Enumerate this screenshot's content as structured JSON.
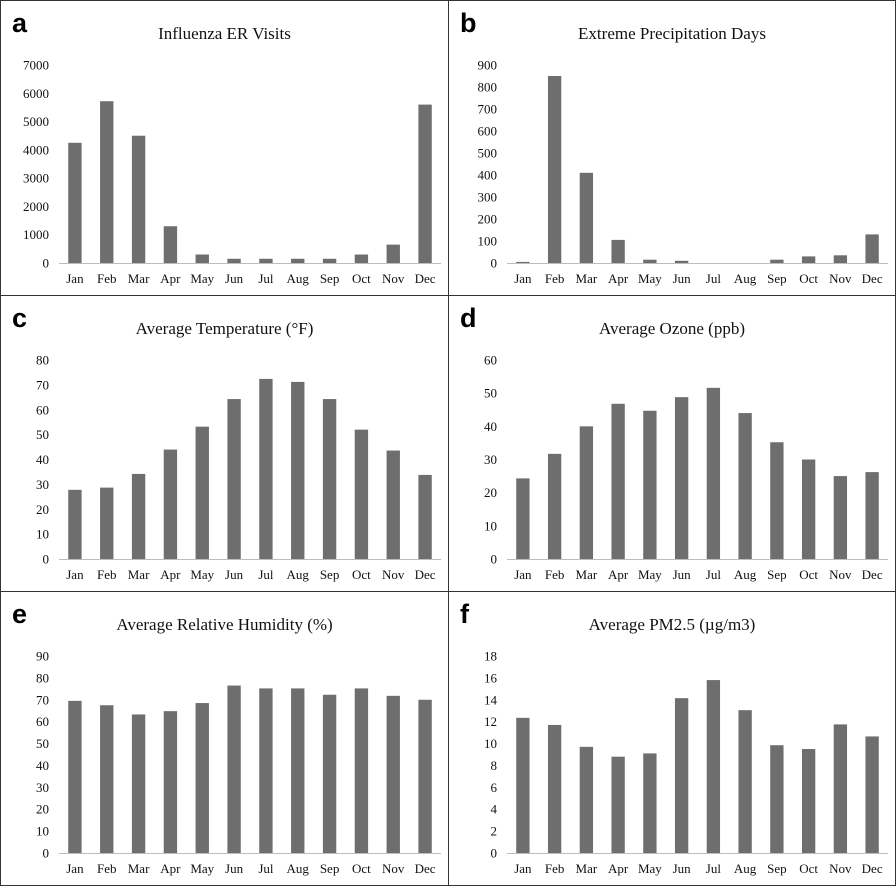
{
  "figure": {
    "bar_color": "#6e6e6e"
  },
  "chart_data": [
    {
      "panel": "a",
      "type": "bar",
      "title": "Influenza ER Visits",
      "categories": [
        "Jan",
        "Feb",
        "Mar",
        "Apr",
        "May",
        "Jun",
        "Jul",
        "Aug",
        "Sep",
        "Oct",
        "Nov",
        "Dec"
      ],
      "values": [
        4250,
        5720,
        4500,
        1300,
        300,
        150,
        150,
        150,
        150,
        300,
        650,
        5600
      ],
      "ylim": [
        0,
        7000
      ],
      "yticks": [
        0,
        1000,
        2000,
        3000,
        4000,
        5000,
        6000,
        7000
      ],
      "grid": false
    },
    {
      "panel": "b",
      "type": "bar",
      "title": "Extreme Precipitation Days",
      "categories": [
        "Jan",
        "Feb",
        "Mar",
        "Apr",
        "May",
        "Jun",
        "Jul",
        "Aug",
        "Sep",
        "Oct",
        "Nov",
        "Dec"
      ],
      "values": [
        5,
        850,
        410,
        105,
        15,
        10,
        0,
        0,
        15,
        30,
        35,
        130
      ],
      "ylim": [
        0,
        900
      ],
      "yticks": [
        0,
        100,
        200,
        300,
        400,
        500,
        600,
        700,
        800,
        900
      ],
      "grid": false
    },
    {
      "panel": "c",
      "type": "bar",
      "title": "Average Temperature (°F)",
      "categories": [
        "Jan",
        "Feb",
        "Mar",
        "Apr",
        "May",
        "Jun",
        "Jul",
        "Aug",
        "Sep",
        "Oct",
        "Nov",
        "Dec"
      ],
      "values": [
        27.8,
        28.7,
        34.2,
        44,
        53.2,
        64.3,
        72.4,
        71.2,
        64.3,
        52,
        43.6,
        33.8
      ],
      "ylim": [
        0,
        80
      ],
      "yticks": [
        0,
        10,
        20,
        30,
        40,
        50,
        60,
        70,
        80
      ],
      "grid": false
    },
    {
      "panel": "d",
      "type": "bar",
      "title": "Average Ozone (ppb)",
      "categories": [
        "Jan",
        "Feb",
        "Mar",
        "Apr",
        "May",
        "Jun",
        "Jul",
        "Aug",
        "Sep",
        "Oct",
        "Nov",
        "Dec"
      ],
      "values": [
        24.3,
        31.7,
        40,
        46.8,
        44.7,
        48.8,
        51.6,
        44,
        35.2,
        30,
        25,
        26.2
      ],
      "ylim": [
        0,
        60
      ],
      "yticks": [
        0,
        10,
        20,
        30,
        40,
        50,
        60
      ],
      "grid": false
    },
    {
      "panel": "e",
      "type": "bar",
      "title": "Average Relative Humidity (%)",
      "categories": [
        "Jan",
        "Feb",
        "Mar",
        "Apr",
        "May",
        "Jun",
        "Jul",
        "Aug",
        "Sep",
        "Oct",
        "Nov",
        "Dec"
      ],
      "values": [
        69.5,
        67.5,
        63.3,
        64.8,
        68.5,
        76.5,
        75.2,
        75.2,
        72.3,
        75.2,
        71.8,
        70
      ],
      "ylim": [
        0,
        90
      ],
      "yticks": [
        0,
        10,
        20,
        30,
        40,
        50,
        60,
        70,
        80,
        90
      ],
      "grid": false
    },
    {
      "panel": "f",
      "type": "bar",
      "title": "Average PM2.5 (µg/m3)",
      "categories": [
        "Jan",
        "Feb",
        "Mar",
        "Apr",
        "May",
        "Jun",
        "Jul",
        "Aug",
        "Sep",
        "Oct",
        "Nov",
        "Dec"
      ],
      "values": [
        12.35,
        11.7,
        9.7,
        8.8,
        9.1,
        14.15,
        15.8,
        13.05,
        9.85,
        9.5,
        11.75,
        10.65
      ],
      "ylim": [
        0,
        18
      ],
      "yticks": [
        0,
        2,
        4,
        6,
        8,
        10,
        12,
        14,
        16,
        18
      ],
      "grid": false
    }
  ]
}
